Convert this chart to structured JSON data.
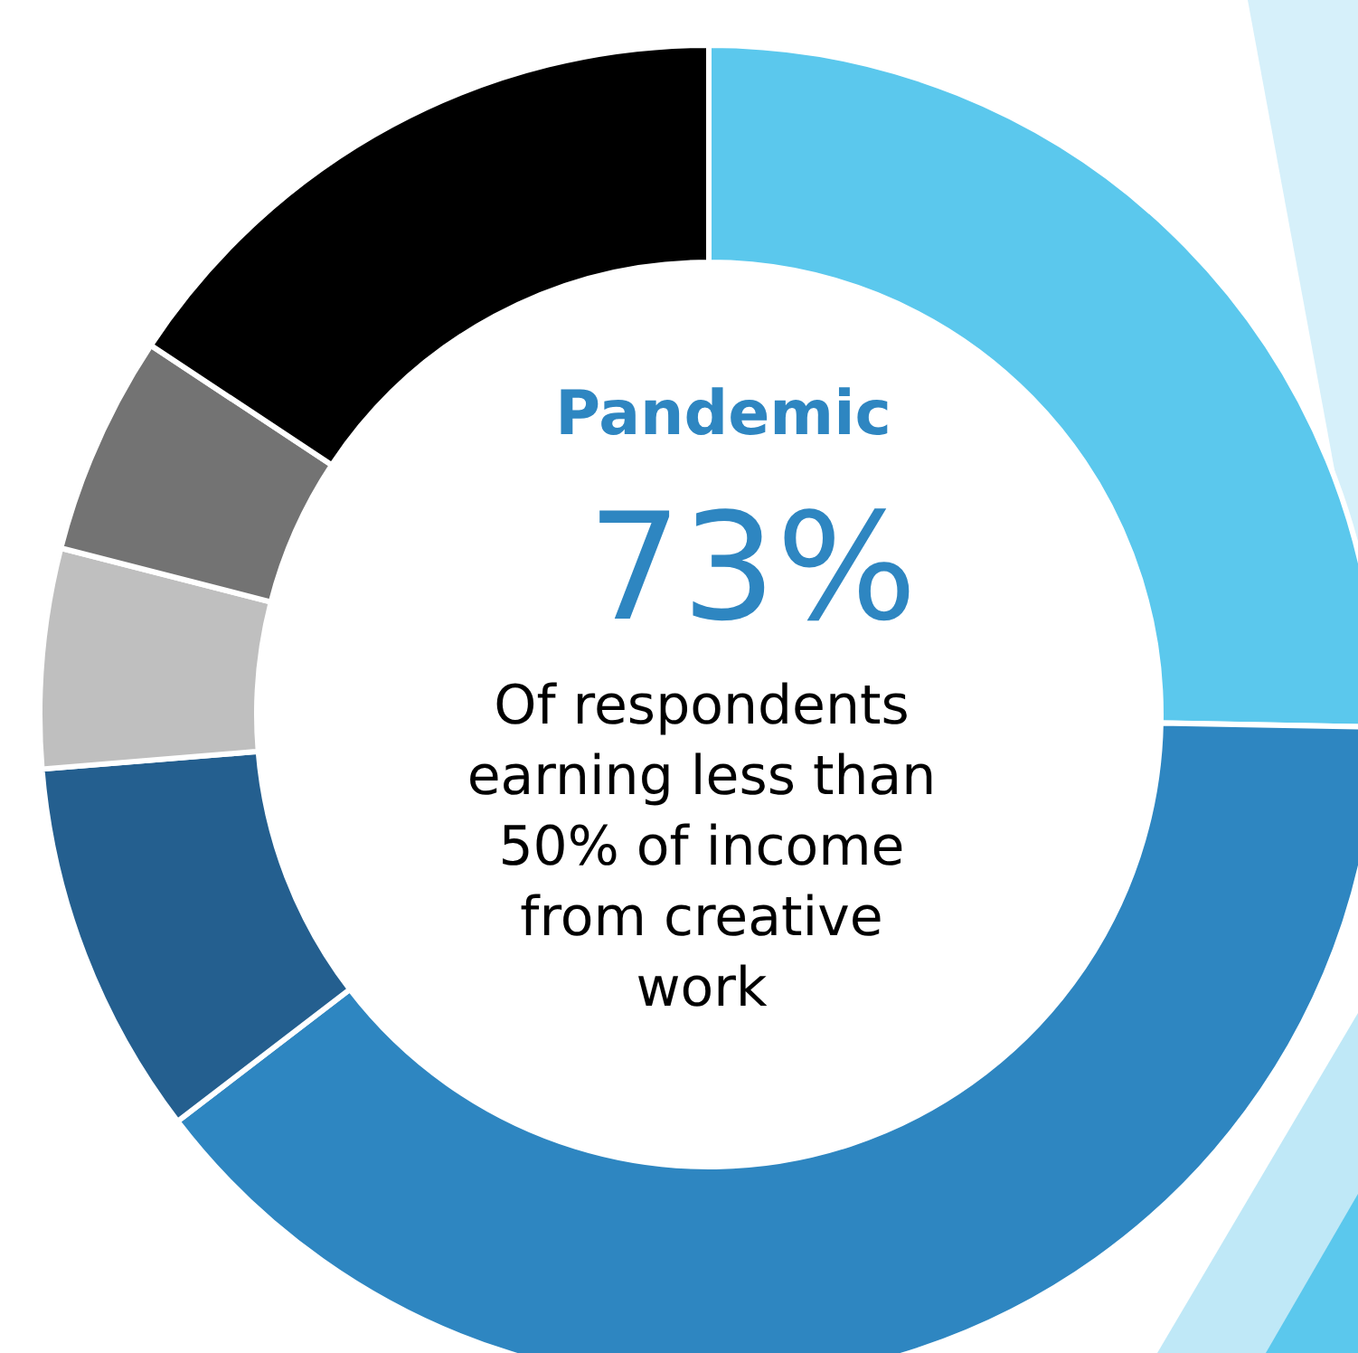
{
  "chart_data": {
    "type": "donut",
    "title": "Pandemic",
    "categories": [
      null,
      null,
      null,
      null,
      null,
      null
    ],
    "values": [
      25.3,
      39.3,
      9.1,
      5.3,
      5.3,
      15.7
    ],
    "colors": [
      "#5bc8ed",
      "#2e86c1",
      "#245f8f",
      "#bfbfbf",
      "#737373",
      "#000000"
    ],
    "annotations": [
      "73%",
      "Of respondents earning less than 50% of income from creative work"
    ]
  }
}
